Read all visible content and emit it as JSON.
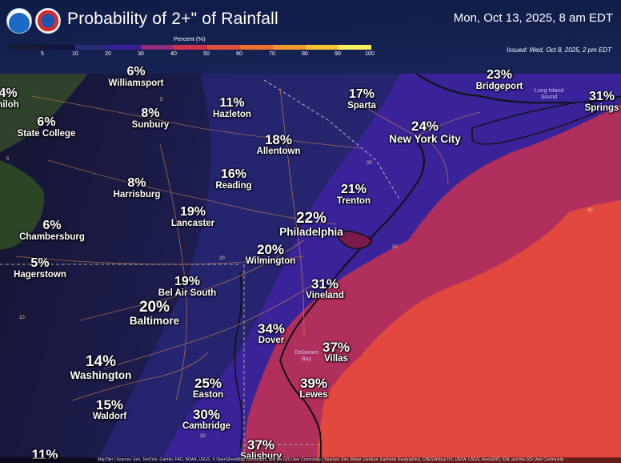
{
  "header": {
    "title": "Probability of 2+\" of Rainfall",
    "valid_time": "Mon, Oct 13, 2025, 8 am EDT",
    "issued": "Issued: Wed, Oct 8, 2025, 2 pm EDT",
    "agency_logos": [
      "noaa-logo",
      "nws-logo"
    ]
  },
  "legend": {
    "title": "Percent (%)",
    "ticks": [
      "5",
      "10",
      "20",
      "30",
      "40",
      "50",
      "60",
      "70",
      "80",
      "90",
      "100"
    ],
    "colors": [
      "#1a1a2e",
      "#14143f",
      "#2a2a7a",
      "#3b1f9a",
      "#8e2d7a",
      "#d0344c",
      "#e0503a",
      "#ee6e2e",
      "#f29a32",
      "#f8c436",
      "#fdf060"
    ]
  },
  "places": [
    {
      "pct": "6%",
      "name": "Williamsport"
    },
    {
      "pct": "4%",
      "name": "hiloh"
    },
    {
      "pct": "8%",
      "name": "Sunbury"
    },
    {
      "pct": "11%",
      "name": "Hazleton"
    },
    {
      "pct": "17%",
      "name": "Sparta"
    },
    {
      "pct": "23%",
      "name": "Bridgeport"
    },
    {
      "pct": "31%",
      "name": "Springs"
    },
    {
      "pct": "6%",
      "name": "State College"
    },
    {
      "pct": "18%",
      "name": "Allentown"
    },
    {
      "pct": "24%",
      "name": "New York City"
    },
    {
      "pct": "8%",
      "name": "Harrisburg"
    },
    {
      "pct": "16%",
      "name": "Reading"
    },
    {
      "pct": "21%",
      "name": "Trenton"
    },
    {
      "pct": "6%",
      "name": "Chambersburg"
    },
    {
      "pct": "19%",
      "name": "Lancaster"
    },
    {
      "pct": "22%",
      "name": "Philadelphia"
    },
    {
      "pct": "5%",
      "name": "Hagerstown"
    },
    {
      "pct": "20%",
      "name": "Wilmington"
    },
    {
      "pct": "19%",
      "name": "Bel Air South"
    },
    {
      "pct": "31%",
      "name": "Vineland"
    },
    {
      "pct": "20%",
      "name": "Baltimore"
    },
    {
      "pct": "34%",
      "name": "Dover"
    },
    {
      "pct": "37%",
      "name": "Villas"
    },
    {
      "pct": "14%",
      "name": "Washington"
    },
    {
      "pct": "25%",
      "name": "Easton"
    },
    {
      "pct": "39%",
      "name": "Lewes"
    },
    {
      "pct": "15%",
      "name": "Waldorf"
    },
    {
      "pct": "30%",
      "name": "Cambridge"
    },
    {
      "pct": "11%",
      "name": ""
    },
    {
      "pct": "37%",
      "name": "Salisbury"
    }
  ],
  "water_labels": {
    "long_island_sound": "Long Island Sound",
    "delaware_bay": "Delaware Bay"
  },
  "road_labels": [
    "5",
    "5",
    "20",
    "20",
    "30",
    "10",
    "30",
    "40"
  ],
  "attribution": "MapTiler | Sources: Esri, TomTom, Garmin, FAO, NOAA, USGS, © OpenStreetMap contributors, and the GIS User Community | Sources: Esri, Maxar, GeoEye, Earthstar Geographics, CNES/Airbus DS, USDA, USGS, AeroGRID, IGN, and the GIS User Community"
}
